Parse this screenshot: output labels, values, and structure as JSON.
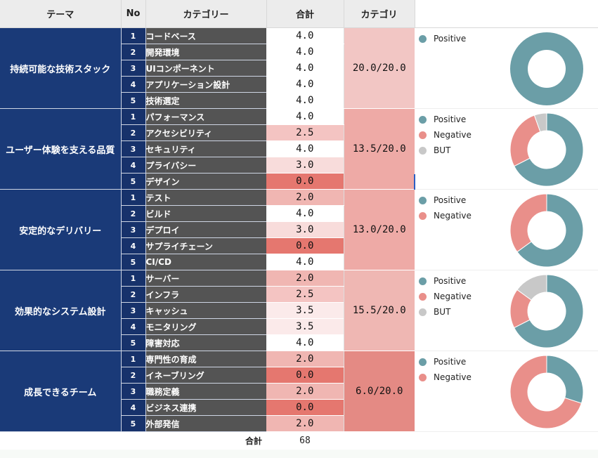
{
  "header": {
    "theme": "テーマ",
    "no": "No",
    "category": "カテゴリー",
    "total": "合計",
    "group": "カテゴリ"
  },
  "colors": {
    "positive": "#6b9ea7",
    "negative": "#e98f8a",
    "but": "#c8c8c8"
  },
  "groups": [
    {
      "theme": "持続可能な技術スタック",
      "total": "20.0/20.0",
      "items": [
        {
          "no": "1",
          "name": "コードベース",
          "score": "4.0"
        },
        {
          "no": "2",
          "name": "開発環境",
          "score": "4.0"
        },
        {
          "no": "3",
          "name": "UIコンポーネント",
          "score": "4.0"
        },
        {
          "no": "4",
          "name": "アプリケーション設計",
          "score": "4.0"
        },
        {
          "no": "5",
          "name": "技術選定",
          "score": "4.0"
        }
      ],
      "legend": [
        {
          "label": "Positive",
          "key": "positive"
        }
      ],
      "pie": {
        "positive": 1.0,
        "negative": 0,
        "but": 0
      }
    },
    {
      "theme": "ユーザー体験を支える品質",
      "total": "13.5/20.0",
      "items": [
        {
          "no": "1",
          "name": "パフォーマンス",
          "score": "4.0"
        },
        {
          "no": "2",
          "name": "アクセシビリティ",
          "score": "2.5"
        },
        {
          "no": "3",
          "name": "セキュリティ",
          "score": "4.0"
        },
        {
          "no": "4",
          "name": "プライバシー",
          "score": "3.0"
        },
        {
          "no": "5",
          "name": "デザイン",
          "score": "0.0"
        }
      ],
      "legend": [
        {
          "label": "Positive",
          "key": "positive"
        },
        {
          "label": "Negative",
          "key": "negative"
        },
        {
          "label": "BUT",
          "key": "but"
        }
      ],
      "pie": {
        "positive": 0.675,
        "negative": 0.27,
        "but": 0.055
      }
    },
    {
      "theme": "安定的なデリバリー",
      "total": "13.0/20.0",
      "items": [
        {
          "no": "1",
          "name": "テスト",
          "score": "2.0"
        },
        {
          "no": "2",
          "name": "ビルド",
          "score": "4.0"
        },
        {
          "no": "3",
          "name": "デプロイ",
          "score": "3.0"
        },
        {
          "no": "4",
          "name": "サプライチェーン",
          "score": "0.0"
        },
        {
          "no": "5",
          "name": "CI/CD",
          "score": "4.0"
        }
      ],
      "legend": [
        {
          "label": "Positive",
          "key": "positive"
        },
        {
          "label": "Negative",
          "key": "negative"
        }
      ],
      "pie": {
        "positive": 0.65,
        "negative": 0.35,
        "but": 0
      }
    },
    {
      "theme": "効果的なシステム設計",
      "total": "15.5/20.0",
      "items": [
        {
          "no": "1",
          "name": "サーバー",
          "score": "2.0"
        },
        {
          "no": "2",
          "name": "インフラ",
          "score": "2.5"
        },
        {
          "no": "3",
          "name": "キャッシュ",
          "score": "3.5"
        },
        {
          "no": "4",
          "name": "モニタリング",
          "score": "3.5"
        },
        {
          "no": "5",
          "name": "障害対応",
          "score": "4.0"
        }
      ],
      "legend": [
        {
          "label": "Positive",
          "key": "positive"
        },
        {
          "label": "Negative",
          "key": "negative"
        },
        {
          "label": "BUT",
          "key": "but"
        }
      ],
      "pie": {
        "positive": 0.675,
        "negative": 0.175,
        "but": 0.15
      }
    },
    {
      "theme": "成長できるチーム",
      "total": "6.0/20.0",
      "items": [
        {
          "no": "1",
          "name": "専門性の育成",
          "score": "2.0"
        },
        {
          "no": "2",
          "name": "イネーブリング",
          "score": "0.0"
        },
        {
          "no": "3",
          "name": "職務定義",
          "score": "2.0"
        },
        {
          "no": "4",
          "name": "ビジネス連携",
          "score": "0.0"
        },
        {
          "no": "5",
          "name": "外部発信",
          "score": "2.0"
        }
      ],
      "legend": [
        {
          "label": "Positive",
          "key": "positive"
        },
        {
          "label": "Negative",
          "key": "negative"
        }
      ],
      "pie": {
        "positive": 0.3,
        "negative": 0.7,
        "but": 0
      }
    }
  ],
  "footer": {
    "label": "合計",
    "total": "68"
  }
}
